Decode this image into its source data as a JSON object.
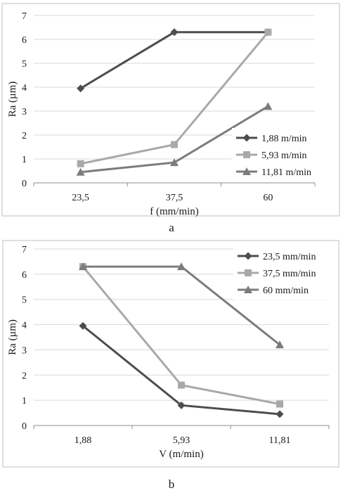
{
  "chart_data": [
    {
      "type": "line",
      "caption": "a",
      "xlabel": "f (mm/min)",
      "ylabel": "Ra (µm)",
      "categories": [
        "23,5",
        "37,5",
        "60"
      ],
      "ylim": [
        0,
        7
      ],
      "yticks": [
        "0",
        "1",
        "2",
        "3",
        "4",
        "5",
        "6",
        "7"
      ],
      "grid": "horizontal",
      "legend_position": "bottom-right",
      "series": [
        {
          "name": "1,88 m/min",
          "values": [
            3.95,
            6.3,
            6.3
          ],
          "color": "#4d4d4d",
          "marker": "diamond"
        },
        {
          "name": "5,93 m/min",
          "values": [
            0.8,
            1.6,
            6.3
          ],
          "color": "#a9a9a9",
          "marker": "square"
        },
        {
          "name": "11,81 m/min",
          "values": [
            0.45,
            0.85,
            3.2
          ],
          "color": "#7c7c7c",
          "marker": "triangle"
        }
      ]
    },
    {
      "type": "line",
      "caption": "b",
      "xlabel": "V (m/min)",
      "ylabel": "Ra (µm)",
      "categories": [
        "1,88",
        "5,93",
        "11,81"
      ],
      "ylim": [
        0,
        7
      ],
      "yticks": [
        "0",
        "1",
        "2",
        "3",
        "4",
        "5",
        "6",
        "7"
      ],
      "grid": "horizontal",
      "legend_position": "top-right",
      "series": [
        {
          "name": "23,5 mm/min",
          "values": [
            3.95,
            0.8,
            0.45
          ],
          "color": "#4d4d4d",
          "marker": "diamond"
        },
        {
          "name": "37,5 mm/min",
          "values": [
            6.3,
            1.6,
            0.85
          ],
          "color": "#a9a9a9",
          "marker": "square"
        },
        {
          "name": "60 mm/min",
          "values": [
            6.3,
            6.3,
            3.2
          ],
          "color": "#7c7c7c",
          "marker": "triangle"
        }
      ]
    }
  ]
}
